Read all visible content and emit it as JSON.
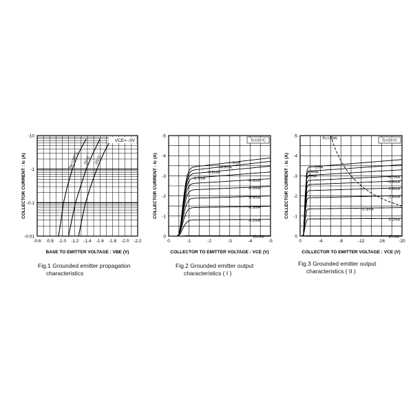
{
  "chart_data": [
    {
      "type": "line",
      "caption_line1": "Fig.1  Grounded emitter propagation",
      "caption_line2": "characteristics",
      "xlabel": "BASE TO EMITTER VOLTAGE : VBE (V)",
      "ylabel": "COLLECTOR CURRENT : Ic (A)",
      "xlim": [
        -0.6,
        -2.2
      ],
      "y_scale": "log",
      "ylim": [
        -0.01,
        -10
      ],
      "x_ticks": [
        "-0.6",
        "-0.8",
        "-1.0",
        "-1.2",
        "-1.4",
        "-1.6",
        "-1.8",
        "-2.0",
        "-2.2"
      ],
      "x_tick_values": [
        -0.6,
        -0.8,
        -1.0,
        -1.2,
        -1.4,
        -1.6,
        -1.8,
        -2.0,
        -2.2
      ],
      "y_ticks": [
        "-10",
        "-1",
        "-0.1",
        "-0.01"
      ],
      "y_tick_values": [
        -10,
        -1,
        -0.1,
        -0.01
      ],
      "annotation": "VCE= -3V",
      "grid": true,
      "series": [
        {
          "name": "Ta=100°C",
          "x": [
            -0.94,
            -0.98,
            -1.02,
            -1.08,
            -1.16,
            -1.26,
            -1.38
          ],
          "y": [
            -0.01,
            -0.03,
            -0.1,
            -0.3,
            -1,
            -3,
            -8
          ]
        },
        {
          "name": "25°C",
          "x": [
            -1.1,
            -1.15,
            -1.21,
            -1.29,
            -1.38,
            -1.49,
            -1.6
          ],
          "y": [
            -0.01,
            -0.03,
            -0.1,
            -0.3,
            -1,
            -3,
            -8
          ]
        },
        {
          "name": "-25°C",
          "x": [
            -1.26,
            -1.31,
            -1.37,
            -1.45,
            -1.55,
            -1.66,
            -1.78
          ],
          "y": [
            -0.01,
            -0.03,
            -0.1,
            -0.3,
            -1,
            -3,
            -8
          ]
        }
      ]
    },
    {
      "type": "line",
      "caption_line1": "Fig.2  Grounded emitter output",
      "caption_line2": "characteristics ( I )",
      "xlabel": "COLLECTOR TO EMITTER VOLTAGE : VCE (V)",
      "ylabel": "COLLECTOR CURRENT : Ic (A)",
      "xlim": [
        0,
        -5
      ],
      "ylim": [
        0,
        -5
      ],
      "x_ticks": [
        "0",
        "-1",
        "-2",
        "-3",
        "-4",
        "-5"
      ],
      "x_tick_values": [
        0,
        -1,
        -2,
        -3,
        -4,
        -5
      ],
      "y_ticks": [
        "0",
        "-1",
        "-2",
        "-3",
        "-4",
        "-5"
      ],
      "y_tick_values": [
        0,
        -1,
        -2,
        -3,
        -4,
        -5
      ],
      "annotation": "Tc=25°C",
      "grid": true,
      "knee_v": -0.9,
      "series": [
        {
          "name": "-1mA",
          "sat": -3.3,
          "slope": 0.09
        },
        {
          "name": "-0.9mA",
          "sat": -3.15,
          "slope": 0.09
        },
        {
          "name": "-0.8mA",
          "sat": -3.0,
          "slope": 0.08
        },
        {
          "name": "-0.7mA",
          "sat": -2.8,
          "slope": 0.07
        },
        {
          "name": "-0.6mA",
          "sat": -2.55,
          "slope": 0.06
        },
        {
          "name": "-0.5mA",
          "sat": -2.25,
          "slope": 0.05
        },
        {
          "name": "-0.4mA",
          "sat": -1.85,
          "slope": 0.04
        },
        {
          "name": "-0.3mA",
          "sat": -1.4,
          "slope": 0.03
        },
        {
          "name": "-0.2mA",
          "sat": -0.8,
          "slope": 0.02
        },
        {
          "name": "IB=0A",
          "sat": -0.02,
          "slope": 0
        }
      ]
    },
    {
      "type": "line",
      "caption_line1": "Fig.3  Grounded emitter output",
      "caption_line2": "characteristics ( II )",
      "xlabel": "COLLECTOR TO EMITTER VOLTAGE : VCE (V)",
      "ylabel": "COLLECTOR CURRENT : Ic (A)",
      "xlim": [
        0,
        -20
      ],
      "ylim": [
        0,
        -5
      ],
      "x_ticks": [
        "0",
        "-4",
        "-8",
        "-12",
        "-16",
        "-20"
      ],
      "x_tick_values": [
        0,
        -4,
        -8,
        -12,
        -16,
        -20
      ],
      "y_ticks": [
        "0",
        "-1",
        "-2",
        "-3",
        "-4",
        "-5"
      ],
      "y_tick_values": [
        0,
        -1,
        -2,
        -3,
        -4,
        -5
      ],
      "annotation": "Tc=25°C",
      "power_curve_label": "Pc=30W",
      "power_w": 30,
      "grid": true,
      "knee_v": -1.2,
      "series": [
        {
          "name": "-1mA",
          "sat": -3.4,
          "slope": 0.06
        },
        {
          "name": "-0.9mA",
          "sat": -3.2,
          "slope": 0.055
        },
        {
          "name": "-0.8mA",
          "sat": -3.0,
          "slope": 0.05
        },
        {
          "name": "-0.7mA",
          "sat": -2.75,
          "slope": 0.045
        },
        {
          "name": "-0.6mA",
          "sat": -2.55,
          "slope": 0.04
        },
        {
          "name": "-0.5mA",
          "sat": -2.25,
          "slope": 0.035
        },
        {
          "name": "-0.4mA",
          "sat": -1.9,
          "slope": 0.03
        },
        {
          "name": "-0.3mA",
          "sat": -1.35,
          "slope": 0.025
        },
        {
          "name": "-0.2mA",
          "sat": -0.85,
          "slope": 0.02
        },
        {
          "name": "IB=0A",
          "sat": -0.02,
          "slope": 0
        }
      ]
    }
  ]
}
